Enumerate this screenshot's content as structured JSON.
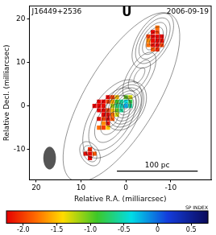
{
  "chart_data": {
    "type": "contour",
    "title": "J16449+2536",
    "subtitle": "2006-09-19",
    "band": "U",
    "x_label": "Relative R.A. (milliarcsec)",
    "y_label": "Relative Decl. (milliarcsec)",
    "xlim": [
      21.5,
      -19
    ],
    "ylim": [
      -17,
      23
    ],
    "xticks": [
      20,
      10,
      0,
      -10
    ],
    "yticks": [
      -10,
      0,
      10,
      20
    ],
    "grid": false,
    "contours": [
      {
        "x": 1,
        "y": 2,
        "major": 22,
        "minor": 8,
        "pa": -30,
        "levels": 1
      },
      {
        "x": 0,
        "y": 0,
        "major": 6,
        "minor": 4,
        "pa": -30,
        "levels": 8
      },
      {
        "x": 3,
        "y": -3,
        "major": 10,
        "minor": 5,
        "pa": -30,
        "levels": 5
      },
      {
        "x": 8,
        "y": -11,
        "major": 3,
        "minor": 2,
        "pa": 30,
        "levels": 3
      },
      {
        "x": -6,
        "y": 15,
        "major": 7,
        "minor": 3.5,
        "pa": -30,
        "levels": 6
      },
      {
        "x": -3,
        "y": 7,
        "major": 6,
        "minor": 2.5,
        "pa": -30,
        "levels": 3
      }
    ],
    "beam": {
      "x": 17,
      "y": -12,
      "major": 2.6,
      "minor": 1.4,
      "pa": 0
    },
    "scale_bar": {
      "label": "100 pc",
      "x": [
        2,
        -16
      ],
      "y": -15
    },
    "spectral_index": {
      "cells": [
        [
          4,
          2,
          -2.3
        ],
        [
          5,
          1,
          -2.4
        ],
        [
          6,
          0,
          -2.3
        ],
        [
          5,
          0,
          -2.2
        ],
        [
          4,
          1,
          -2.0
        ],
        [
          3,
          1,
          -1.6
        ],
        [
          3,
          0,
          -1.2
        ],
        [
          2,
          1,
          -0.9
        ],
        [
          2,
          0,
          -0.7
        ],
        [
          1,
          0,
          -0.5
        ],
        [
          1,
          1,
          -0.6
        ],
        [
          0,
          0,
          -0.2
        ],
        [
          0,
          1,
          -0.4
        ],
        [
          1,
          -1,
          -0.6
        ],
        [
          2,
          -1,
          -1.0
        ],
        [
          3,
          -1,
          -1.5
        ],
        [
          4,
          -1,
          -2.0
        ],
        [
          5,
          -1,
          -2.3
        ],
        [
          4,
          -2,
          -2.2
        ],
        [
          5,
          -2,
          -2.4
        ],
        [
          3,
          -2,
          -1.8
        ],
        [
          4,
          -3,
          -2.3
        ],
        [
          5,
          -3,
          -2.0
        ],
        [
          5,
          -4,
          -1.7
        ],
        [
          4,
          -4,
          -2.2
        ],
        [
          6,
          -5,
          -1.8
        ],
        [
          5,
          -5,
          -2.0
        ],
        [
          4,
          -5,
          -1.5
        ],
        [
          -1,
          1,
          -0.8
        ],
        [
          -1,
          0,
          -0.6
        ],
        [
          0,
          2,
          -1.0
        ],
        [
          -1,
          2,
          -1.3
        ],
        [
          6,
          -1,
          -2.3
        ],
        [
          6,
          1,
          -2.4
        ],
        [
          7,
          0,
          -2.4
        ],
        [
          3,
          2,
          -2.0
        ],
        [
          2,
          2,
          -1.5
        ],
        [
          6,
          -3,
          -2.2
        ],
        [
          3,
          -3,
          -1.9
        ],
        [
          2,
          -2,
          -1.3
        ],
        [
          8,
          -11,
          -2.3
        ],
        [
          7,
          -11,
          -1.9
        ],
        [
          8,
          -10,
          -2.1
        ],
        [
          9,
          -11,
          -2.2
        ],
        [
          8,
          -12,
          -2.4
        ],
        [
          -6,
          16,
          -2.3
        ],
        [
          -7,
          16,
          -2.4
        ],
        [
          -6,
          15,
          -2.2
        ],
        [
          -7,
          15,
          -2.3
        ],
        [
          -5,
          14,
          -1.8
        ],
        [
          -6,
          14,
          -2.2
        ],
        [
          -7,
          14,
          -2.4
        ],
        [
          -8,
          15,
          -2.2
        ],
        [
          -7,
          17,
          -2.0
        ],
        [
          -6,
          17,
          -2.4
        ],
        [
          -5,
          16,
          -2.0
        ],
        [
          -8,
          14,
          -2.0
        ],
        [
          -6,
          13,
          -1.9
        ],
        [
          -7,
          13,
          -2.1
        ],
        [
          -5,
          15,
          -1.7
        ],
        [
          -7,
          18,
          -1.8
        ],
        [
          -8,
          16,
          -2.3
        ]
      ],
      "colorbar": {
        "label": "SP INDEX",
        "range": [
          -2.25,
          0.75
        ],
        "ticks": [
          -2,
          -1.5,
          -1,
          -0.5,
          0,
          0.5
        ]
      }
    }
  }
}
